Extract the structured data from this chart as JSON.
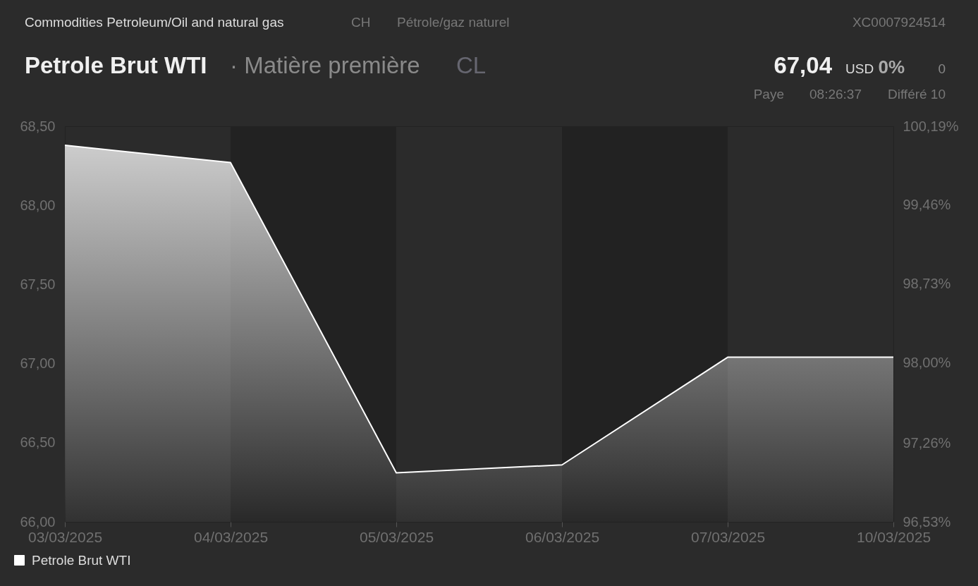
{
  "chart_data": {
    "type": "area",
    "title": "Petrole Brut WTI",
    "annotations": [
      "Commodities Petroleum/Oil and natural gas",
      "CH",
      "Pétrole/gaz naturel",
      "XC0007924514",
      "· Matière première",
      "CL",
      "67,04",
      "USD",
      "0%",
      "0",
      "Paye",
      "08:26:37",
      "Différé 10"
    ],
    "categories": [
      "03/03/2025",
      "04/03/2025",
      "05/03/2025",
      "06/03/2025",
      "07/03/2025",
      "10/03/2025"
    ],
    "series": [
      {
        "name": "Petrole Brut WTI",
        "color": "#ffffff",
        "values": [
          68.38,
          68.27,
          66.31,
          66.36,
          67.04,
          67.04
        ]
      }
    ],
    "ylim": [
      66.0,
      68.5
    ],
    "yticks": [
      {
        "value": 66.0,
        "label": "66,00"
      },
      {
        "value": 66.5,
        "label": "66,50"
      },
      {
        "value": 67.0,
        "label": "67,00"
      },
      {
        "value": 67.5,
        "label": "67,50"
      },
      {
        "value": 68.0,
        "label": "68,00"
      },
      {
        "value": 68.5,
        "label": "68,50"
      }
    ],
    "y2lim": [
      96.53,
      100.19
    ],
    "y2ticks": [
      {
        "value": 96.53,
        "label": "96,53%"
      },
      {
        "value": 97.26,
        "label": "97,26%"
      },
      {
        "value": 98.0,
        "label": "98,00%"
      },
      {
        "value": 98.73,
        "label": "98,73%"
      },
      {
        "value": 99.46,
        "label": "99,46%"
      },
      {
        "value": 100.19,
        "label": "100,19%"
      }
    ],
    "bands": [
      {
        "axis": "x",
        "from": "04/03/2025",
        "to": "05/03/2025",
        "color": "#222222"
      },
      {
        "axis": "x",
        "from": "06/03/2025",
        "to": "07/03/2025",
        "color": "#222222"
      }
    ],
    "legend": "bottom left"
  }
}
